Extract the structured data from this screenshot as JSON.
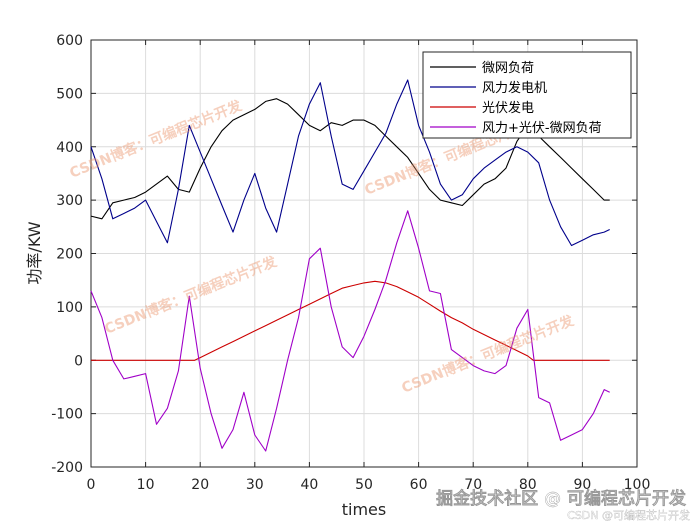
{
  "chart_data": {
    "type": "line",
    "xlabel": "times",
    "ylabel": "功率/KW",
    "xlim": [
      0,
      100
    ],
    "ylim": [
      -200,
      600
    ],
    "xticks": [
      0,
      10,
      20,
      30,
      40,
      50,
      60,
      70,
      80,
      90,
      100
    ],
    "yticks": [
      -200,
      -100,
      0,
      100,
      200,
      300,
      400,
      500,
      600
    ],
    "grid": true,
    "legend_position": "top-right",
    "series": [
      {
        "name": "微网负荷",
        "color": "#000000",
        "x": [
          0,
          2,
          4,
          6,
          8,
          10,
          12,
          14,
          16,
          18,
          20,
          22,
          24,
          26,
          28,
          30,
          32,
          34,
          36,
          38,
          40,
          42,
          44,
          46,
          48,
          50,
          52,
          54,
          56,
          58,
          60,
          62,
          64,
          66,
          68,
          70,
          72,
          74,
          76,
          78,
          80,
          82,
          84,
          86,
          88,
          90,
          92,
          94,
          95
        ],
        "y": [
          270,
          265,
          295,
          300,
          305,
          315,
          330,
          345,
          320,
          315,
          360,
          400,
          430,
          450,
          460,
          470,
          485,
          490,
          480,
          460,
          440,
          430,
          445,
          440,
          450,
          450,
          440,
          420,
          400,
          380,
          350,
          320,
          300,
          295,
          290,
          310,
          330,
          340,
          360,
          410,
          440,
          420,
          400,
          380,
          360,
          340,
          320,
          300,
          300
        ]
      },
      {
        "name": "风力发电机",
        "color": "#00008b",
        "x": [
          0,
          2,
          4,
          6,
          8,
          10,
          12,
          14,
          16,
          18,
          20,
          22,
          24,
          26,
          28,
          30,
          32,
          34,
          36,
          38,
          40,
          42,
          44,
          46,
          48,
          50,
          52,
          54,
          56,
          58,
          60,
          62,
          64,
          66,
          68,
          70,
          72,
          74,
          76,
          78,
          80,
          82,
          84,
          86,
          88,
          90,
          92,
          94,
          95
        ],
        "y": [
          400,
          340,
          265,
          275,
          285,
          300,
          260,
          220,
          320,
          440,
          390,
          340,
          290,
          240,
          300,
          350,
          285,
          240,
          330,
          420,
          480,
          520,
          420,
          330,
          320,
          355,
          390,
          425,
          480,
          525,
          440,
          390,
          330,
          300,
          310,
          340,
          360,
          375,
          390,
          400,
          390,
          370,
          300,
          250,
          215,
          225,
          235,
          240,
          245
        ]
      },
      {
        "name": "光伏发电",
        "color": "#cc0000",
        "x": [
          0,
          2,
          4,
          6,
          8,
          10,
          12,
          14,
          16,
          18,
          19,
          20,
          22,
          24,
          26,
          28,
          30,
          32,
          34,
          36,
          38,
          40,
          42,
          44,
          46,
          48,
          50,
          52,
          54,
          56,
          58,
          60,
          62,
          64,
          66,
          68,
          70,
          72,
          74,
          76,
          78,
          80,
          81,
          82,
          84,
          86,
          88,
          90,
          92,
          94,
          95
        ],
        "y": [
          0,
          0,
          0,
          0,
          0,
          0,
          0,
          0,
          0,
          0,
          0,
          5,
          15,
          25,
          35,
          45,
          55,
          65,
          75,
          85,
          95,
          105,
          115,
          125,
          135,
          140,
          145,
          148,
          145,
          138,
          128,
          118,
          105,
          92,
          80,
          70,
          58,
          48,
          38,
          28,
          18,
          8,
          0,
          0,
          0,
          0,
          0,
          0,
          0,
          0,
          0
        ]
      },
      {
        "name": "风力+光伏-微网负荷",
        "color": "#a000c8",
        "x": [
          0,
          2,
          4,
          6,
          8,
          10,
          12,
          14,
          16,
          18,
          20,
          22,
          24,
          26,
          28,
          30,
          32,
          34,
          36,
          38,
          40,
          42,
          44,
          46,
          48,
          50,
          52,
          54,
          56,
          58,
          60,
          62,
          64,
          66,
          68,
          70,
          72,
          74,
          76,
          78,
          80,
          82,
          84,
          86,
          88,
          90,
          92,
          94,
          95
        ],
        "y": [
          130,
          80,
          0,
          -35,
          -30,
          -25,
          -120,
          -90,
          -20,
          120,
          -15,
          -100,
          -165,
          -130,
          -60,
          -140,
          -170,
          -90,
          0,
          80,
          190,
          210,
          100,
          25,
          5,
          45,
          95,
          150,
          220,
          280,
          210,
          130,
          125,
          20,
          5,
          -10,
          -20,
          -25,
          -10,
          60,
          95,
          -70,
          -80,
          -150,
          -140,
          -130,
          -100,
          -55,
          -60
        ]
      }
    ]
  },
  "watermarks": {
    "csdn_repeat": "CSDN博客：可编程芯片开发",
    "juejin": "掘金技术社区 @ 可编程芯片开发",
    "footer": "CSDN @可编程芯片开发"
  }
}
